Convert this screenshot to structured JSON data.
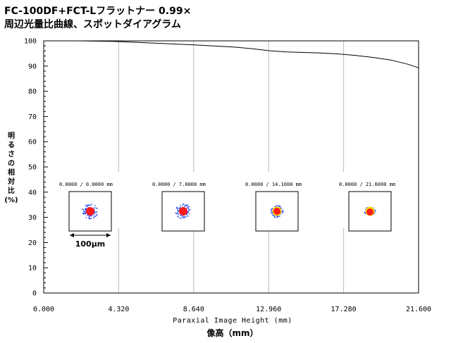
{
  "header": {
    "line1": "FC-100DF+FCT-Lフラットナー 0.99×",
    "line2": "周辺光量比曲線、スポットダイアグラム"
  },
  "chart_data": {
    "type": "line",
    "xlabel": "Paraxial Image Height (mm)",
    "xlabel_jp": "像高（mm）",
    "ylabel_jp": [
      "明",
      "る",
      "さ",
      "の",
      "相",
      "対",
      "比",
      "(%)"
    ],
    "xlim": [
      0,
      21.6
    ],
    "ylim": [
      0,
      100
    ],
    "x_ticks": [
      "0.000",
      "4.320",
      "8.640",
      "12.960",
      "17.280",
      "21.600"
    ],
    "y_ticks": [
      "0",
      "10",
      "20",
      "30",
      "40",
      "50",
      "60",
      "70",
      "80",
      "90",
      "100"
    ],
    "grid": true,
    "series": [
      {
        "x": [
          0,
          1,
          2,
          3,
          4,
          5,
          6,
          7,
          8,
          9,
          10,
          11,
          12,
          13,
          14,
          15,
          16,
          17,
          18,
          19,
          20,
          21,
          21.6
        ],
        "values": [
          100.0,
          100.0,
          100.0,
          99.9,
          99.8,
          99.5,
          99.2,
          98.9,
          98.6,
          98.3,
          97.9,
          97.5,
          96.9,
          96.1,
          95.6,
          95.4,
          95.2,
          94.8,
          94.2,
          93.4,
          92.4,
          90.7,
          89.3
        ]
      }
    ],
    "spot_diagrams": [
      {
        "label": "0.0000 /   0.0000 mm"
      },
      {
        "label": "0.0000 /   7.0000 mm"
      },
      {
        "label": "0.0000 /  14.1000 mm"
      },
      {
        "label": "0.0000 /  21.6000 mm"
      }
    ],
    "scale_bar_label": "100μm",
    "colors": {
      "curve": "#000000",
      "grid": "#bbbbbb",
      "spot_outer": "#2244ee",
      "spot_core": "#ff1a1a",
      "spot_yellow": "#ffdd00"
    }
  }
}
